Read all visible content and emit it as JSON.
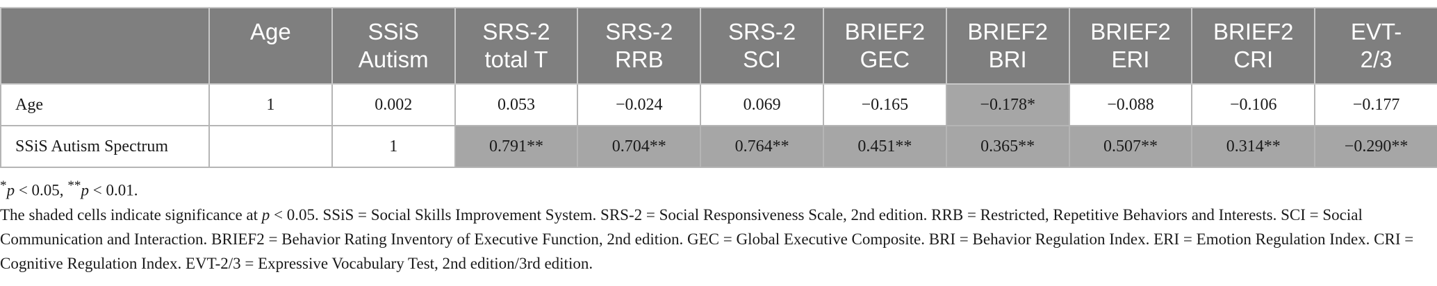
{
  "table": {
    "corner": "",
    "columns": [
      [
        "Age"
      ],
      [
        "SSiS",
        "Autism"
      ],
      [
        "SRS-2",
        "total T"
      ],
      [
        "SRS-2",
        "RRB"
      ],
      [
        "SRS-2",
        "SCI"
      ],
      [
        "BRIEF2",
        "GEC"
      ],
      [
        "BRIEF2",
        "BRI"
      ],
      [
        "BRIEF2",
        "ERI"
      ],
      [
        "BRIEF2",
        "CRI"
      ],
      [
        "EVT-",
        "2/3"
      ]
    ],
    "rows": [
      {
        "label": "Age",
        "cells": [
          {
            "v": "1",
            "sig": false
          },
          {
            "v": "0.002",
            "sig": false
          },
          {
            "v": "0.053",
            "sig": false
          },
          {
            "v": "−0.024",
            "sig": false
          },
          {
            "v": "0.069",
            "sig": false
          },
          {
            "v": "−0.165",
            "sig": false
          },
          {
            "v": "−0.178*",
            "sig": true
          },
          {
            "v": "−0.088",
            "sig": false
          },
          {
            "v": "−0.106",
            "sig": false
          },
          {
            "v": "−0.177",
            "sig": false
          }
        ]
      },
      {
        "label": "SSiS Autism Spectrum",
        "cells": [
          {
            "v": "",
            "sig": false
          },
          {
            "v": "1",
            "sig": false
          },
          {
            "v": "0.791**",
            "sig": true
          },
          {
            "v": "0.704**",
            "sig": true
          },
          {
            "v": "0.764**",
            "sig": true
          },
          {
            "v": "0.451**",
            "sig": true
          },
          {
            "v": "0.365**",
            "sig": true
          },
          {
            "v": "0.507**",
            "sig": true
          },
          {
            "v": "0.314**",
            "sig": true
          },
          {
            "v": "−0.290**",
            "sig": true
          }
        ]
      }
    ]
  },
  "notes": {
    "significance": {
      "star1": "*",
      "p1": "p",
      "cond1": " < 0.05, ",
      "star2": "**",
      "p2": "p",
      "cond2": " < 0.01."
    },
    "shading_before": "The shaded cells indicate significance at ",
    "shading_p": "p",
    "shading_after": " < 0.05. SSiS = Social Skills Improvement System. SRS-2 = Social Responsiveness Scale, 2nd edition. RRB = Restricted, Repetitive Behaviors and Interests. SCI = Social Communication and Interaction. BRIEF2 = Behavior Rating Inventory of Executive Function, 2nd edition. GEC = Global Executive Composite. BRI = Behavior Regulation Index. ERI = Emotion Regulation Index. CRI = Cognitive Regulation Index. EVT-2/3 = Expressive Vocabulary Test, 2nd edition/3rd edition."
  },
  "colors": {
    "header_bg": "#7f7f7f",
    "significant_bg": "#a6a6a6"
  }
}
